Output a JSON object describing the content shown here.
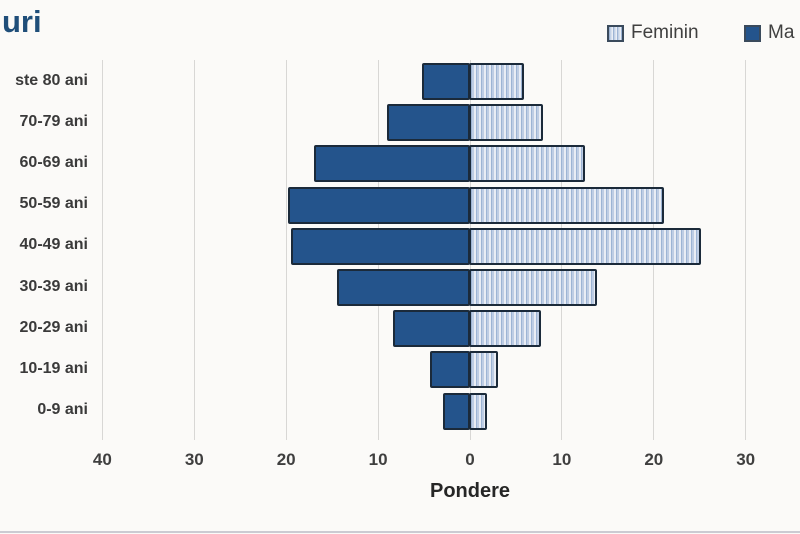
{
  "title": "uri",
  "legend": {
    "items": [
      {
        "label": "Feminin",
        "swatch": "striped-light-blue"
      },
      {
        "label": "Ma",
        "swatch": "solid-dark-blue"
      }
    ]
  },
  "axis": {
    "xlabel": "Pondere",
    "tick_labels": [
      "40",
      "30",
      "20",
      "10",
      "0",
      "10",
      "20",
      "30"
    ]
  },
  "chart_data": {
    "type": "bar",
    "orientation": "horizontal-population-pyramid",
    "title": "uri",
    "xlabel": "Pondere",
    "categories": [
      "ste 80 ani",
      "70-79 ani",
      "60-69 ani",
      "50-59 ani",
      "40-49 ani",
      "30-39 ani",
      "20-29 ani",
      "10-19 ani",
      "0-9 ani"
    ],
    "series": [
      {
        "name": "Ma",
        "side": "left",
        "values": [
          5.2,
          9,
          17,
          19.8,
          19.5,
          14.5,
          8.4,
          4.3,
          2.9
        ]
      },
      {
        "name": "Feminin",
        "side": "right",
        "values": [
          6,
          8,
          12.6,
          21.2,
          25.2,
          13.9,
          7.8,
          3.2,
          2
        ]
      }
    ],
    "x_tick_values": [
      -40,
      -30,
      -20,
      -10,
      0,
      10,
      20,
      30
    ],
    "xlim": [
      -40,
      30
    ],
    "grid": true,
    "legend_position": "top-right"
  },
  "colors": {
    "title": "#1F4E79",
    "male_fill": "#24548C",
    "bar_border": "#1B2A3A",
    "female_stripe_base": "#BECDE4",
    "female_stripe_light": "#E9EDF5",
    "gridline": "#D8D7D5",
    "axis_text": "#3F3F3F",
    "background": "#FBFAF8"
  }
}
